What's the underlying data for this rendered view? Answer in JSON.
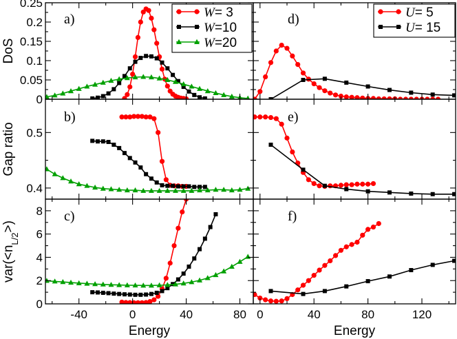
{
  "chart_data": [
    {
      "type": "line",
      "panel": "a)",
      "ylabel": "DoS",
      "xlim": [
        -65,
        90
      ],
      "ylim": [
        0,
        0.25
      ],
      "yticks": [
        "0",
        "0.05",
        "0.1",
        "0.15",
        "0.2",
        "0.25"
      ],
      "series": [
        {
          "name": "W= 3",
          "legend_var": "W",
          "legend_eq": "= 3",
          "color": "#ff0000",
          "marker": "circle",
          "x": [
            -6,
            -4,
            -2,
            0,
            2,
            4,
            6,
            8,
            10,
            12,
            14,
            16,
            18,
            20,
            22,
            24,
            26,
            28,
            30,
            32,
            34,
            36,
            38,
            40
          ],
          "y": [
            0.002,
            0.012,
            0.032,
            0.065,
            0.11,
            0.16,
            0.2,
            0.226,
            0.234,
            0.23,
            0.21,
            0.18,
            0.145,
            0.11,
            0.078,
            0.052,
            0.034,
            0.021,
            0.013,
            0.008,
            0.005,
            0.003,
            0.002,
            0.001
          ]
        },
        {
          "name": "W=10",
          "legend_var": "W",
          "legend_eq": "=10",
          "color": "#000000",
          "marker": "square",
          "x": [
            -30,
            -26,
            -22,
            -18,
            -14,
            -10,
            -6,
            -2,
            2,
            6,
            10,
            14,
            18,
            22,
            26,
            30,
            34,
            38,
            42,
            46,
            50,
            54
          ],
          "y": [
            0.002,
            0.004,
            0.008,
            0.015,
            0.026,
            0.042,
            0.06,
            0.08,
            0.097,
            0.107,
            0.112,
            0.111,
            0.106,
            0.095,
            0.08,
            0.063,
            0.047,
            0.032,
            0.02,
            0.011,
            0.005,
            0.002
          ]
        },
        {
          "name": "W=20",
          "legend_var": "W",
          "legend_eq": "=20",
          "color": "#00a000",
          "marker": "triangle",
          "x": [
            -64,
            -58,
            -52,
            -46,
            -40,
            -34,
            -28,
            -22,
            -16,
            -10,
            -4,
            2,
            8,
            14,
            20,
            26,
            32,
            38,
            44,
            50,
            56,
            62,
            68,
            74,
            80,
            86
          ],
          "y": [
            0.006,
            0.01,
            0.015,
            0.021,
            0.027,
            0.033,
            0.038,
            0.043,
            0.048,
            0.052,
            0.055,
            0.057,
            0.058,
            0.057,
            0.054,
            0.05,
            0.045,
            0.039,
            0.033,
            0.027,
            0.021,
            0.016,
            0.011,
            0.007,
            0.004,
            0.002
          ]
        }
      ]
    },
    {
      "type": "line",
      "panel": "b)",
      "ylabel": "Gap ratio",
      "xlim": [
        -65,
        90
      ],
      "ylim": [
        0.38,
        0.56
      ],
      "yticks": [
        "0.4",
        "0.5"
      ],
      "series": [
        {
          "name": "W= 3",
          "color": "#ff0000",
          "marker": "circle",
          "x": [
            -8,
            -5,
            -2,
            1,
            4,
            7,
            10,
            13,
            16,
            19,
            22,
            25,
            28,
            31,
            34,
            37,
            40
          ],
          "y": [
            0.528,
            0.528,
            0.528,
            0.529,
            0.529,
            0.529,
            0.528,
            0.528,
            0.525,
            0.5,
            0.448,
            0.415,
            0.405,
            0.404,
            0.404,
            0.403,
            0.403
          ]
        },
        {
          "name": "W=10",
          "color": "#000000",
          "marker": "square",
          "x": [
            -30,
            -26,
            -22,
            -18,
            -14,
            -10,
            -6,
            -2,
            2,
            6,
            10,
            14,
            18,
            22,
            26,
            30,
            34,
            38,
            42,
            46,
            50,
            54
          ],
          "y": [
            0.485,
            0.484,
            0.484,
            0.483,
            0.478,
            0.472,
            0.463,
            0.454,
            0.446,
            0.437,
            0.425,
            0.417,
            0.41,
            0.405,
            0.404,
            0.404,
            0.403,
            0.403,
            0.403,
            0.402,
            0.402,
            0.402
          ]
        },
        {
          "name": "W=20",
          "color": "#00a000",
          "marker": "triangle",
          "x": [
            -64,
            -58,
            -52,
            -46,
            -40,
            -34,
            -28,
            -22,
            -16,
            -10,
            -4,
            2,
            8,
            14,
            20,
            26,
            32,
            38,
            44,
            50,
            56,
            62,
            68,
            74,
            80,
            86
          ],
          "y": [
            0.434,
            0.425,
            0.418,
            0.412,
            0.407,
            0.404,
            0.401,
            0.399,
            0.398,
            0.397,
            0.396,
            0.396,
            0.395,
            0.395,
            0.395,
            0.395,
            0.395,
            0.395,
            0.395,
            0.396,
            0.396,
            0.397,
            0.397,
            0.396,
            0.397,
            0.399
          ]
        }
      ]
    },
    {
      "type": "line",
      "panel": "c)",
      "ylabel": "var(<n",
      "ylabel_sub": "L/2",
      "ylabel_end": ">)",
      "xlabel": "Energy",
      "xlim": [
        -65,
        90
      ],
      "ylim": [
        0,
        9
      ],
      "yticks": [
        "0",
        "2",
        "4",
        "6",
        "8"
      ],
      "xticks": [
        "-40",
        "0",
        "40",
        "80"
      ],
      "series": [
        {
          "name": "W= 3",
          "color": "#ff0000",
          "marker": "circle",
          "x": [
            -8,
            -5,
            -2,
            1,
            4,
            7,
            10,
            13,
            16,
            19,
            22,
            25,
            28,
            31,
            34,
            37,
            40
          ],
          "y": [
            0.15,
            0.12,
            0.11,
            0.1,
            0.1,
            0.1,
            0.12,
            0.2,
            0.35,
            0.65,
            1.3,
            2.2,
            3.5,
            5.0,
            6.5,
            7.9,
            9.0
          ]
        },
        {
          "name": "W=10",
          "color": "#000000",
          "marker": "square",
          "x": [
            -30,
            -26,
            -22,
            -18,
            -14,
            -10,
            -6,
            -2,
            2,
            6,
            10,
            14,
            18,
            22,
            26,
            30,
            34,
            38,
            42,
            46,
            50,
            54,
            58,
            62
          ],
          "y": [
            1.0,
            0.98,
            0.95,
            0.92,
            0.88,
            0.85,
            0.82,
            0.8,
            0.78,
            0.78,
            0.8,
            0.85,
            0.95,
            1.1,
            1.35,
            1.7,
            2.1,
            2.6,
            3.2,
            3.9,
            4.7,
            5.6,
            6.6,
            7.7
          ]
        },
        {
          "name": "W=20",
          "color": "#00a000",
          "marker": "triangle",
          "x": [
            -64,
            -58,
            -52,
            -46,
            -40,
            -34,
            -28,
            -22,
            -16,
            -10,
            -4,
            2,
            8,
            14,
            20,
            26,
            32,
            38,
            44,
            50,
            56,
            62,
            68,
            74,
            80,
            86
          ],
          "y": [
            1.98,
            1.93,
            1.88,
            1.83,
            1.78,
            1.74,
            1.7,
            1.67,
            1.64,
            1.62,
            1.6,
            1.59,
            1.58,
            1.58,
            1.6,
            1.63,
            1.68,
            1.76,
            1.87,
            2.02,
            2.22,
            2.48,
            2.8,
            3.2,
            3.62,
            4.05
          ]
        }
      ]
    },
    {
      "type": "line",
      "panel": "d)",
      "xlim": [
        -5,
        145
      ],
      "ylim": [
        0,
        0.25
      ],
      "series": [
        {
          "name": "U= 5",
          "legend_var": "U",
          "legend_eq": "= 5",
          "color": "#ff0000",
          "marker": "circle",
          "x": [
            -4,
            0,
            4,
            8,
            12,
            16,
            20,
            24,
            28,
            32,
            36,
            40,
            44,
            48,
            52,
            56,
            60,
            64,
            68,
            72,
            76,
            80,
            84,
            88,
            92,
            96,
            100,
            104,
            108,
            112,
            116,
            120,
            124,
            128,
            132
          ],
          "y": [
            0.0,
            0.02,
            0.058,
            0.095,
            0.125,
            0.14,
            0.132,
            0.112,
            0.09,
            0.068,
            0.052,
            0.04,
            0.03,
            0.022,
            0.016,
            0.011,
            0.008,
            0.006,
            0.005,
            0.004,
            0.003,
            0.002,
            0.002,
            0.001,
            0.001,
            0.001,
            0.001,
            0.0,
            0.0,
            0.0,
            0.0,
            0.0,
            0.0,
            0.0,
            0.0
          ]
        },
        {
          "name": "U= 15",
          "legend_var": "U",
          "legend_eq": "= 15",
          "color": "#000000",
          "marker": "square",
          "x": [
            8,
            32,
            48,
            64,
            80,
            96,
            112,
            128,
            144
          ],
          "y": [
            0.0,
            0.05,
            0.053,
            0.043,
            0.033,
            0.024,
            0.017,
            0.012,
            0.01
          ]
        }
      ]
    },
    {
      "type": "line",
      "panel": "e)",
      "xlim": [
        -5,
        145
      ],
      "ylim": [
        0.38,
        0.56
      ],
      "series": [
        {
          "name": "U= 5",
          "color": "#ff0000",
          "marker": "circle",
          "x": [
            -4,
            0,
            4,
            8,
            12,
            16,
            20,
            24,
            28,
            32,
            36,
            40,
            44,
            48,
            52,
            56,
            60,
            64,
            68,
            72,
            76,
            80,
            84
          ],
          "y": [
            0.528,
            0.528,
            0.528,
            0.527,
            0.525,
            0.515,
            0.49,
            0.465,
            0.445,
            0.428,
            0.415,
            0.408,
            0.404,
            0.403,
            0.404,
            0.404,
            0.405,
            0.406,
            0.406,
            0.407,
            0.407,
            0.407,
            0.408
          ]
        },
        {
          "name": "U= 15",
          "color": "#000000",
          "marker": "square",
          "x": [
            8,
            32,
            48,
            64,
            80,
            96,
            112,
            128,
            144
          ],
          "y": [
            0.478,
            0.433,
            0.404,
            0.398,
            0.394,
            0.392,
            0.39,
            0.389,
            0.389
          ]
        }
      ]
    },
    {
      "type": "line",
      "panel": "f)",
      "xlabel": "Energy",
      "xlim": [
        -5,
        145
      ],
      "ylim": [
        0,
        9
      ],
      "xticks": [
        "0",
        "40",
        "80",
        "120"
      ],
      "series": [
        {
          "name": "U= 5",
          "color": "#ff0000",
          "marker": "circle",
          "x": [
            -4,
            0,
            4,
            8,
            12,
            16,
            20,
            24,
            28,
            32,
            36,
            40,
            44,
            48,
            52,
            56,
            60,
            64,
            68,
            72,
            76,
            80,
            84,
            88
          ],
          "y": [
            0.8,
            0.5,
            0.35,
            0.25,
            0.22,
            0.25,
            0.45,
            0.8,
            1.2,
            1.6,
            2.0,
            2.45,
            2.9,
            3.3,
            3.7,
            4.15,
            4.6,
            4.9,
            5.1,
            5.3,
            5.9,
            6.4,
            6.6,
            6.9
          ]
        },
        {
          "name": "U= 15",
          "color": "#000000",
          "marker": "square",
          "x": [
            8,
            32,
            48,
            64,
            80,
            96,
            112,
            128,
            144
          ],
          "y": [
            1.1,
            0.85,
            1.1,
            1.5,
            1.95,
            2.35,
            2.9,
            3.35,
            3.7
          ]
        }
      ]
    }
  ]
}
